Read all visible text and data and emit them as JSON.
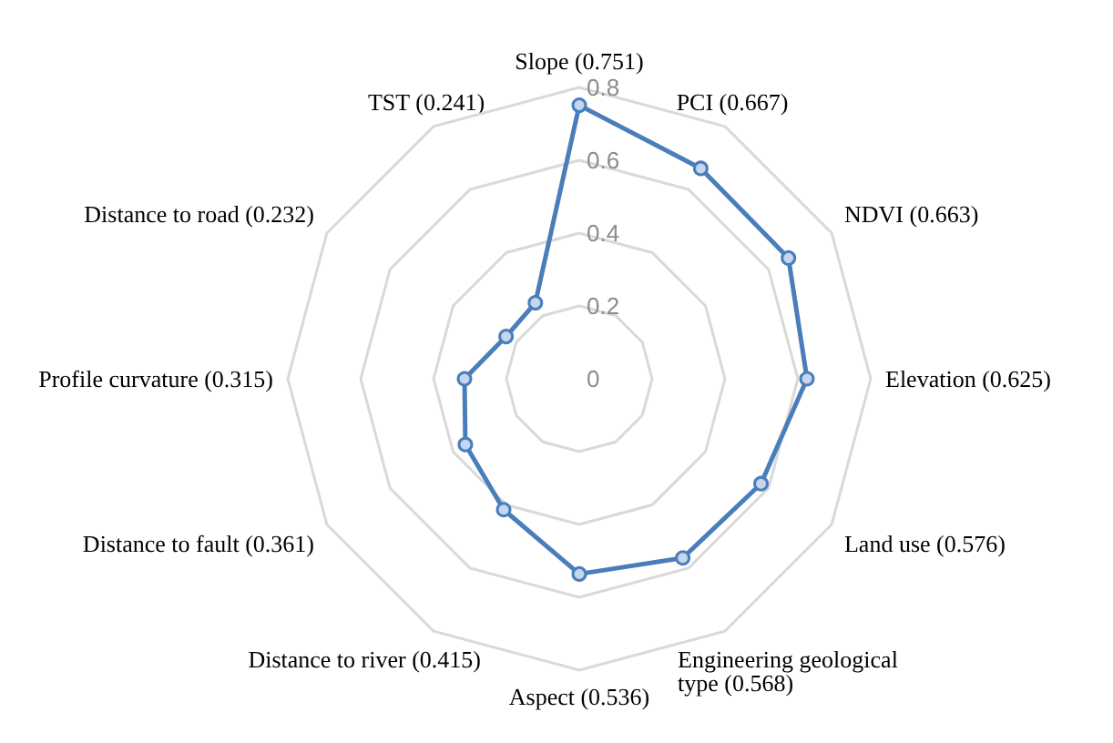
{
  "chart_data": {
    "type": "radar",
    "categories": [
      "Slope (0.751)",
      "PCI (0.667)",
      "NDVI (0.663)",
      "Elevation (0.625)",
      "Land use (0.576)",
      "Engineering geological type (0.568)",
      "Aspect (0.536)",
      "Distance to river (0.415)",
      "Distance to fault (0.361)",
      "Profile curvature (0.315)",
      "Distance to road (0.232)",
      "TST (0.241)"
    ],
    "series": [
      {
        "color": "#4a7ebb",
        "values": [
          0.751,
          0.667,
          0.663,
          0.625,
          0.576,
          0.568,
          0.536,
          0.415,
          0.361,
          0.315,
          0.232,
          0.241
        ]
      }
    ],
    "ylim": [
      0,
      0.8
    ],
    "yticks": [
      0,
      0.2,
      0.4,
      0.6,
      0.8
    ],
    "grid": true,
    "marker": "circle"
  }
}
